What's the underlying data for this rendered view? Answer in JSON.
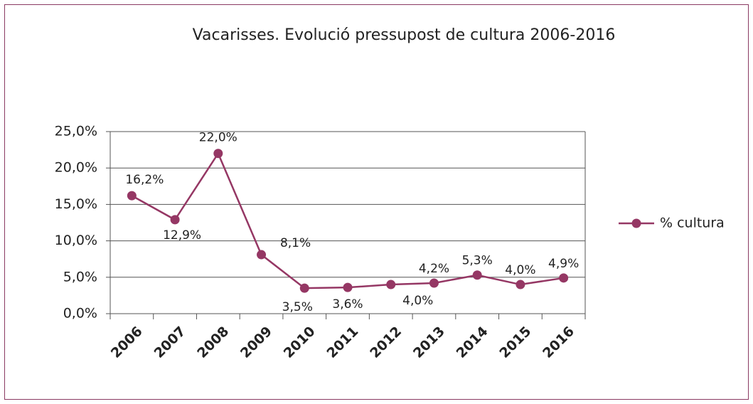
{
  "chart_data": {
    "type": "line",
    "title": "Vacarisses. Evolució pressupost de cultura 2006-2016",
    "categories": [
      "2006",
      "2007",
      "2008",
      "2009",
      "2010",
      "2011",
      "2012",
      "2013",
      "2014",
      "2015",
      "2016"
    ],
    "series": [
      {
        "name": "% cultura",
        "color": "#953764",
        "values": [
          16.2,
          12.9,
          22.0,
          8.1,
          3.5,
          3.6,
          4.0,
          4.2,
          5.3,
          4.0,
          4.9
        ],
        "value_labels": [
          "16,2%",
          "12,9%",
          "22,0%",
          "8,1%",
          "3,5%",
          "3,6%",
          "4,0%",
          "4,2%",
          "5,3%",
          "4,0%",
          "4,9%"
        ]
      }
    ],
    "ylim": [
      0,
      25
    ],
    "yticks": [
      {
        "value": 0,
        "label": "0,0%"
      },
      {
        "value": 5,
        "label": "5,0%"
      },
      {
        "value": 10,
        "label": "10,0%"
      },
      {
        "value": 15,
        "label": "15,0%"
      },
      {
        "value": 20,
        "label": "20,0%"
      },
      {
        "value": 25,
        "label": "25,0%"
      }
    ],
    "grid": true,
    "legend": "right"
  }
}
